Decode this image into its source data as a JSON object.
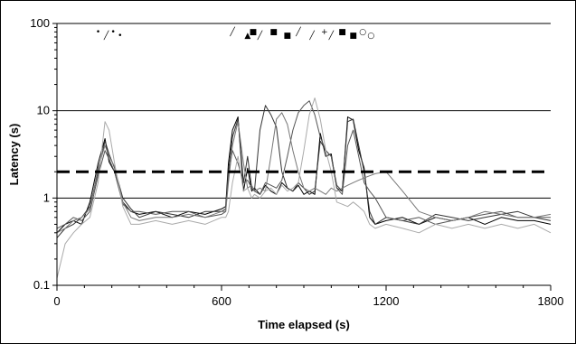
{
  "chart_data": {
    "type": "line",
    "title": "",
    "xlabel": "Time elapsed (s)",
    "ylabel": "Latency (s)",
    "xlim": [
      0,
      1800
    ],
    "ylim": [
      0.1,
      100
    ],
    "y_scale": "log",
    "x_ticks": [
      0,
      600,
      1200,
      1800
    ],
    "x_tick_labels": [
      "0",
      "600",
      "1200",
      "1800"
    ],
    "y_ticks": [
      0.1,
      1,
      10,
      100
    ],
    "y_tick_labels": [
      "0.1",
      "1",
      "10",
      "100"
    ],
    "gridlines": "horizontal",
    "legend": "none",
    "threshold": {
      "y": 2.0,
      "style": "dashed",
      "color": "#000000"
    },
    "series": [
      {
        "color": "#000000",
        "x": [
          0,
          30,
          60,
          90,
          120,
          150,
          175,
          190,
          210,
          240,
          270,
          300,
          360,
          420,
          480,
          540,
          600,
          615,
          625,
          640,
          660,
          680,
          695,
          710,
          720,
          740,
          760,
          780,
          800,
          820,
          840,
          860,
          880,
          900,
          920,
          940,
          960,
          980,
          1000,
          1020,
          1040,
          1060,
          1080,
          1100,
          1120,
          1140,
          1160,
          1200,
          1260,
          1320,
          1380,
          1440,
          1500,
          1560,
          1620,
          1680,
          1740,
          1800
        ],
        "y": [
          0.4,
          0.5,
          0.55,
          0.5,
          0.9,
          2.5,
          4.8,
          2.6,
          2.0,
          0.9,
          0.7,
          0.65,
          0.7,
          0.6,
          0.7,
          0.65,
          0.75,
          0.8,
          2.5,
          6.0,
          8.5,
          1.2,
          2.2,
          1.2,
          1.3,
          1.1,
          1.4,
          1.2,
          1.1,
          1.5,
          1.3,
          1.2,
          1.4,
          1.1,
          1.2,
          1.1,
          5.5,
          3.0,
          3.2,
          1.3,
          1.2,
          8.5,
          7.8,
          3.5,
          2.2,
          0.6,
          0.5,
          0.55,
          0.6,
          0.5,
          0.6,
          0.55,
          0.6,
          0.5,
          0.6,
          0.55,
          0.55,
          0.5
        ]
      },
      {
        "color": "#333333",
        "x": [
          0,
          30,
          60,
          90,
          120,
          150,
          175,
          190,
          210,
          240,
          270,
          300,
          360,
          420,
          480,
          540,
          600,
          615,
          625,
          640,
          660,
          680,
          695,
          710,
          720,
          740,
          760,
          780,
          800,
          820,
          840,
          860,
          880,
          900,
          920,
          940,
          960,
          980,
          1000,
          1020,
          1040,
          1060,
          1080,
          1100,
          1120,
          1140,
          1160,
          1200,
          1260,
          1320,
          1380,
          1440,
          1500,
          1560,
          1620,
          1680,
          1740,
          1800
        ],
        "y": [
          0.35,
          0.45,
          0.5,
          0.6,
          0.8,
          2.0,
          4.5,
          3.2,
          2.2,
          1.0,
          0.75,
          0.6,
          0.7,
          0.65,
          0.6,
          0.7,
          0.7,
          0.75,
          2.0,
          5.0,
          8.0,
          1.5,
          3.0,
          1.3,
          1.2,
          6.0,
          11.5,
          9.0,
          6.5,
          2.0,
          1.3,
          1.2,
          1.5,
          1.3,
          1.1,
          1.2,
          4.5,
          3.5,
          3.0,
          1.4,
          1.2,
          7.5,
          8.0,
          4.0,
          2.0,
          0.7,
          0.5,
          0.6,
          0.55,
          0.5,
          0.65,
          0.6,
          0.55,
          0.6,
          0.65,
          0.7,
          0.6,
          0.55
        ]
      },
      {
        "color": "#555555",
        "x": [
          0,
          30,
          60,
          90,
          120,
          150,
          175,
          190,
          210,
          240,
          270,
          300,
          360,
          420,
          480,
          540,
          600,
          615,
          625,
          640,
          660,
          680,
          695,
          710,
          720,
          740,
          760,
          780,
          800,
          820,
          840,
          860,
          880,
          900,
          920,
          940,
          960,
          980,
          1000,
          1020,
          1040,
          1060,
          1080,
          1100,
          1120,
          1140,
          1160,
          1200,
          1260,
          1320,
          1380,
          1440,
          1500,
          1560,
          1620,
          1680,
          1740,
          1800
        ],
        "y": [
          0.45,
          0.5,
          0.6,
          0.55,
          0.7,
          1.8,
          3.5,
          2.8,
          2.0,
          0.85,
          0.7,
          0.7,
          0.65,
          0.7,
          0.7,
          0.6,
          0.65,
          0.7,
          1.8,
          3.5,
          2.5,
          1.5,
          1.6,
          1.3,
          1.2,
          1.1,
          1.5,
          1.4,
          1.3,
          1.6,
          3.0,
          6.0,
          9.5,
          11.5,
          13.0,
          9.0,
          5.0,
          3.5,
          3.0,
          1.3,
          1.1,
          4.0,
          6.0,
          3.0,
          1.5,
          1.2,
          1.0,
          0.6,
          0.55,
          0.6,
          0.5,
          0.55,
          0.6,
          0.65,
          0.7,
          0.6,
          0.6,
          0.6
        ]
      },
      {
        "color": "#777777",
        "x": [
          0,
          30,
          60,
          90,
          120,
          150,
          175,
          190,
          210,
          240,
          270,
          300,
          360,
          420,
          480,
          540,
          600,
          615,
          625,
          640,
          660,
          680,
          695,
          710,
          720,
          740,
          760,
          780,
          800,
          820,
          840,
          860,
          880,
          900,
          920,
          940,
          960,
          980,
          1000,
          1020,
          1040,
          1060,
          1080,
          1100,
          1120,
          1140,
          1160,
          1200,
          1260,
          1320,
          1380,
          1440,
          1500,
          1560,
          1620,
          1680,
          1740,
          1800
        ],
        "y": [
          0.4,
          0.45,
          0.55,
          0.6,
          0.75,
          2.2,
          4.0,
          3.0,
          2.3,
          0.9,
          0.6,
          0.55,
          0.6,
          0.6,
          0.65,
          0.6,
          0.7,
          0.7,
          1.5,
          4.0,
          7.5,
          2.5,
          1.3,
          1.4,
          1.2,
          1.3,
          1.2,
          3.0,
          8.0,
          9.5,
          7.0,
          3.5,
          2.0,
          1.3,
          1.2,
          1.3,
          1.2,
          1.1,
          1.3,
          1.2,
          1.3,
          1.4,
          1.5,
          1.6,
          1.7,
          1.8,
          1.9,
          2.0,
          1.2,
          0.7,
          0.6,
          0.55,
          0.6,
          0.7,
          0.65,
          0.6,
          0.6,
          0.65
        ]
      },
      {
        "color": "#aaaaaa",
        "x": [
          0,
          30,
          60,
          90,
          120,
          150,
          175,
          190,
          210,
          240,
          270,
          300,
          360,
          420,
          480,
          540,
          600,
          615,
          625,
          640,
          660,
          680,
          695,
          710,
          720,
          740,
          760,
          780,
          800,
          820,
          840,
          860,
          880,
          900,
          920,
          940,
          960,
          980,
          1000,
          1020,
          1040,
          1060,
          1080,
          1100,
          1120,
          1140,
          1160,
          1200,
          1260,
          1320,
          1380,
          1440,
          1500,
          1560,
          1620,
          1680,
          1740,
          1800
        ],
        "y": [
          0.12,
          0.3,
          0.4,
          0.5,
          0.6,
          1.5,
          7.5,
          6.0,
          2.5,
          0.8,
          0.5,
          0.5,
          0.55,
          0.5,
          0.55,
          0.5,
          0.6,
          0.6,
          0.7,
          1.5,
          3.0,
          1.2,
          1.3,
          1.0,
          1.1,
          1.0,
          1.2,
          1.3,
          1.1,
          1.4,
          1.2,
          1.3,
          1.5,
          3.5,
          9.0,
          14.0,
          8.0,
          3.5,
          2.0,
          0.9,
          0.85,
          0.8,
          0.9,
          0.8,
          0.7,
          0.5,
          0.45,
          0.5,
          0.45,
          0.4,
          0.5,
          0.45,
          0.5,
          0.45,
          0.5,
          0.45,
          0.5,
          0.4
        ]
      }
    ],
    "marker_annotations": [
      {
        "label": "•",
        "x": 150
      },
      {
        "label": "╱",
        "x": 180
      },
      {
        "label": "•",
        "x": 205
      },
      {
        "label": "•",
        "x": 230
      },
      {
        "label": "╱",
        "x": 640
      },
      {
        "label": "▲",
        "x": 695
      },
      {
        "label": "■",
        "x": 715
      },
      {
        "label": "╱",
        "x": 740
      },
      {
        "label": "■",
        "x": 790
      },
      {
        "label": "■",
        "x": 840
      },
      {
        "label": "╱",
        "x": 880
      },
      {
        "label": "╱",
        "x": 930
      },
      {
        "label": "+",
        "x": 975
      },
      {
        "label": "╱",
        "x": 1000
      },
      {
        "label": "■",
        "x": 1040
      },
      {
        "label": "■",
        "x": 1080
      },
      {
        "label": "○",
        "x": 1115
      },
      {
        "label": "○",
        "x": 1145
      }
    ]
  }
}
